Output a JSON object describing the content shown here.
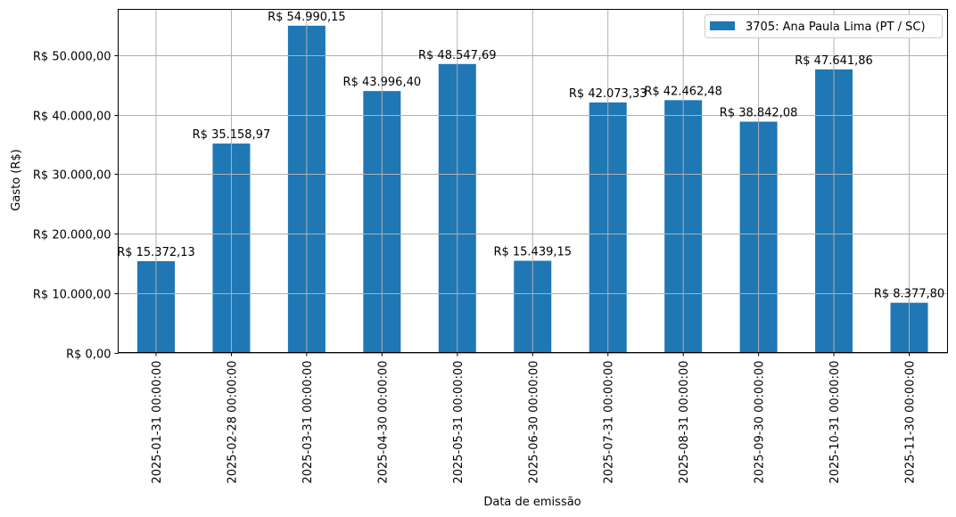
{
  "chart_data": {
    "type": "bar",
    "title": "",
    "xlabel": "Data de emissão",
    "ylabel": "Gasto (R$)",
    "ylim": [
      0,
      57740
    ],
    "grid": true,
    "legend_position": "upper right",
    "categories": [
      "2025-01-31 00:00:00",
      "2025-02-28 00:00:00",
      "2025-03-31 00:00:00",
      "2025-04-30 00:00:00",
      "2025-05-31 00:00:00",
      "2025-06-30 00:00:00",
      "2025-07-31 00:00:00",
      "2025-08-31 00:00:00",
      "2025-09-30 00:00:00",
      "2025-10-31 00:00:00",
      "2025-11-30 00:00:00"
    ],
    "series": [
      {
        "name": "3705: Ana Paula Lima (PT / SC)",
        "color": "#1f77b4",
        "values": [
          15372.13,
          35158.97,
          54990.15,
          43996.4,
          48547.69,
          15439.15,
          42073.33,
          42462.48,
          38842.08,
          47641.86,
          8377.8
        ],
        "labels": [
          "R$ 15.372,13",
          "R$ 35.158,97",
          "R$ 54.990,15",
          "R$ 43.996,40",
          "R$ 48.547,69",
          "R$ 15.439,15",
          "R$ 42.073,33",
          "R$ 42.462,48",
          "R$ 38.842,08",
          "R$ 47.641,86",
          "R$ 8.377,80"
        ]
      }
    ],
    "yticks": [
      0,
      10000,
      20000,
      30000,
      40000,
      50000
    ],
    "ytick_labels": [
      "R$ 0,00",
      "R$ 10.000,00",
      "R$ 20.000,00",
      "R$ 30.000,00",
      "R$ 40.000,00",
      "R$ 50.000,00"
    ]
  },
  "colors": {
    "bar": "#1f77b4",
    "grid": "#b0b0b0",
    "axis": "#000000",
    "legend_border": "#cccccc"
  }
}
